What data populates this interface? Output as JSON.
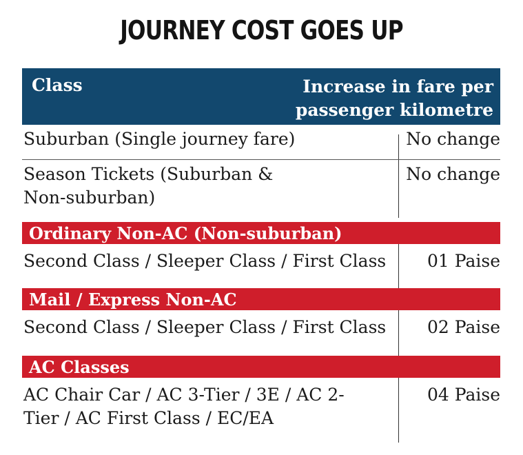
{
  "title": "JOURNEY COST GOES UP",
  "header": {
    "col1": "Class",
    "col2": "Increase in fare per passenger kilometre"
  },
  "rows": [
    {
      "cls": "Suburban (Single journey fare)",
      "value": "No change"
    },
    {
      "cls": "Season Tickets (Suburban & Non-suburban)",
      "value": "No change"
    }
  ],
  "sections": [
    {
      "heading": "Ordinary Non-AC (Non-suburban)",
      "row": {
        "cls": "Second Class / Sleeper Class / First Class",
        "value": "01 Paise"
      }
    },
    {
      "heading": "Mail / Express Non-AC",
      "row": {
        "cls": "Second Class / Sleeper Class / First Class",
        "value": "02 Paise"
      }
    },
    {
      "heading": "AC Classes",
      "row": {
        "cls": "AC Chair Car / AC 3-Tier / 3E / AC 2-Tier / AC First Class / EC/EA",
        "value": "04 Paise"
      }
    }
  ],
  "colors": {
    "header_bg": "#12486e",
    "section_bg": "#cf1e2b"
  }
}
